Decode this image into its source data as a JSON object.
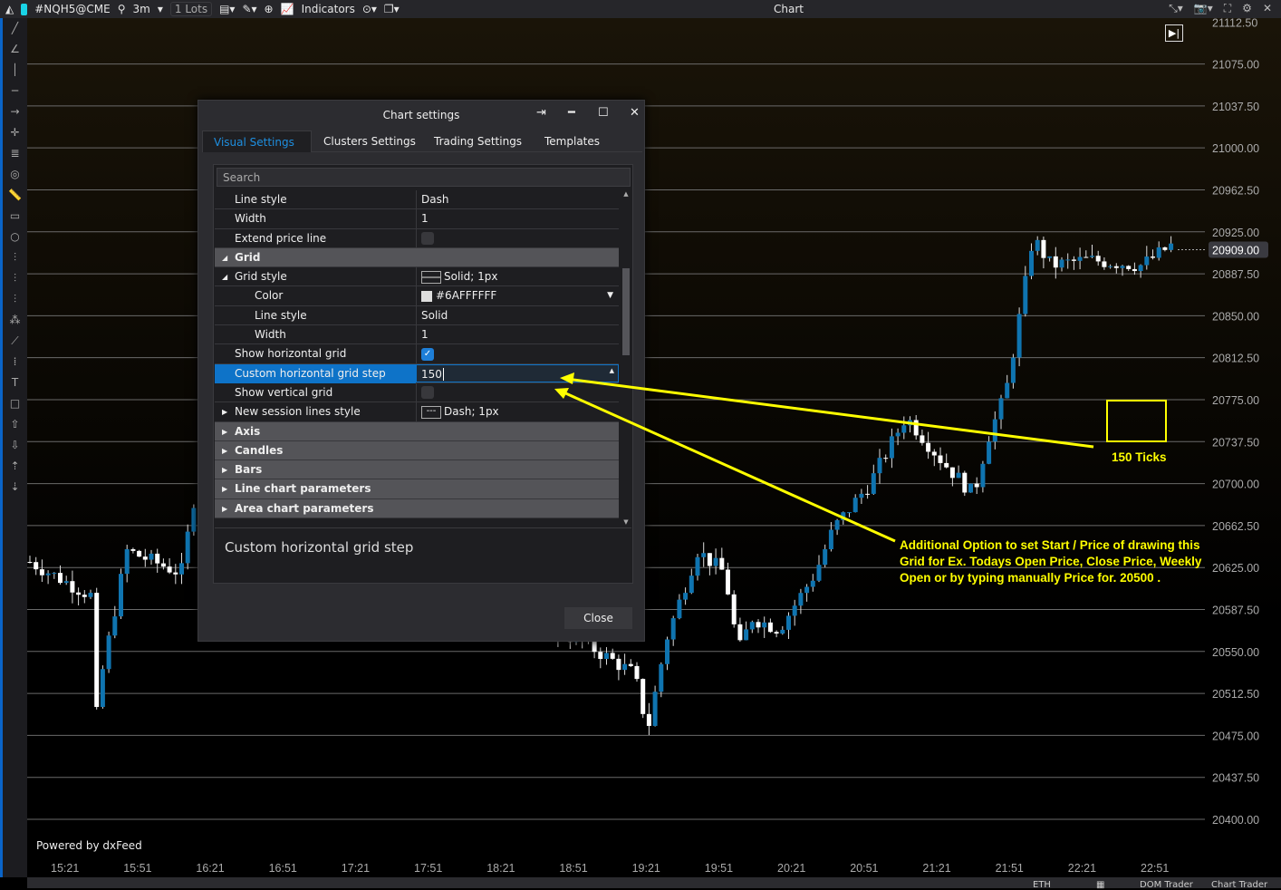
{
  "topbar": {
    "symbol": "#NQH5@CME",
    "timeframe": "3m",
    "lots_qty": "1",
    "lots_label": "Lots",
    "indicators": "Indicators",
    "window_title": "Chart"
  },
  "chart": {
    "price_labels": [
      "21112.50",
      "21075.00",
      "21037.50",
      "21000.00",
      "20962.50",
      "20925.00",
      "20887.50",
      "20850.00",
      "20812.50",
      "20775.00",
      "20737.50",
      "20700.00",
      "20662.50",
      "20625.00",
      "20587.50",
      "20550.00",
      "20512.50",
      "20475.00",
      "20437.50",
      "20400.00"
    ],
    "current_price": "20909.00",
    "time_labels": [
      "15:21",
      "15:51",
      "16:21",
      "16:51",
      "17:21",
      "17:51",
      "18:21",
      "18:51",
      "19:21",
      "19:51",
      "20:21",
      "20:51",
      "21:21",
      "21:51",
      "22:21",
      "22:51"
    ],
    "powered_by": "Powered by dxFeed",
    "colors": {
      "up": "#0f74b0",
      "down": "#ffffff",
      "grid": "#6a6a6a",
      "annotation": "#ffff00"
    }
  },
  "dialog": {
    "title": "Chart settings",
    "tabs": [
      "Visual Settings",
      "Clusters Settings",
      "Trading Settings",
      "Templates"
    ],
    "search_placeholder": "Search",
    "rows": [
      {
        "name": "Line style",
        "value": "Dash",
        "indent": 2
      },
      {
        "name": "Width",
        "value": "1",
        "indent": 2
      },
      {
        "name": "Extend price line",
        "checkbox": false,
        "indent": 2
      },
      {
        "name": "Grid",
        "category": true,
        "expanded": true
      },
      {
        "name": "Grid style",
        "value": "Solid; 1px",
        "indent": 2,
        "expanded": true,
        "swatch": "solid"
      },
      {
        "name": "Color",
        "value": "#6AFFFFFF",
        "indent": 4,
        "swatch": "color",
        "dropdown": true
      },
      {
        "name": "Line style",
        "value": "Solid",
        "indent": 4
      },
      {
        "name": "Width",
        "value": "1",
        "indent": 4
      },
      {
        "name": "Show horizontal grid",
        "checkbox": true,
        "indent": 2
      },
      {
        "name": "Custom horizontal grid step",
        "value": "150",
        "indent": 2,
        "selected": true
      },
      {
        "name": "Show vertical grid",
        "checkbox": false,
        "indent": 2
      },
      {
        "name": "New session lines style",
        "value": "Dash; 1px",
        "indent": 2,
        "collapsed": true,
        "swatch": "dash"
      },
      {
        "name": "Axis",
        "category": true
      },
      {
        "name": "Candles",
        "category": true
      },
      {
        "name": "Bars",
        "category": true
      },
      {
        "name": "Line chart parameters",
        "category": true
      },
      {
        "name": "Area chart parameters",
        "category": true
      }
    ],
    "description": "Custom horizontal grid step",
    "close_label": "Close"
  },
  "annotations": {
    "box_label": "150 Ticks",
    "note": [
      "Additional Option to set Start / Price of drawing this Grid",
      "for Ex. Todays Open Price, Close Price, Weekly Open",
      "or by typing manually Price for. 20500 ."
    ]
  },
  "status": {
    "tz": "ETH",
    "dom": "DOM Trader",
    "ct": "Chart Trader"
  }
}
